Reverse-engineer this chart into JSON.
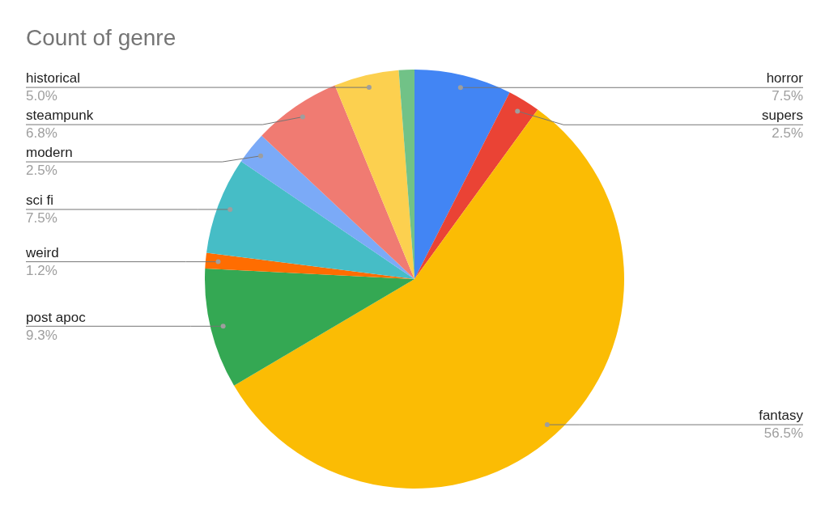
{
  "chart_data": {
    "type": "pie",
    "title": "Count of genre",
    "categories": [
      "horror",
      "supers",
      "fantasy",
      "post apoc",
      "weird",
      "sci fi",
      "modern",
      "steampunk",
      "historical",
      null
    ],
    "values": [
      7.5,
      2.5,
      56.5,
      9.3,
      1.2,
      7.5,
      2.5,
      6.8,
      5.0,
      1.2
    ],
    "colors": [
      "#4285f4",
      "#ea4335",
      "#fbbc04",
      "#34a853",
      "#ff6d01",
      "#46bdc6",
      "#7baaf7",
      "#f07b72",
      "#fcd04f",
      "#71c287"
    ],
    "value_labels": [
      "7.5%",
      "2.5%",
      "56.5%",
      "9.3%",
      "1.2%",
      "7.5%",
      "2.5%",
      "6.8%",
      "5.0%",
      null
    ],
    "legend": false
  }
}
